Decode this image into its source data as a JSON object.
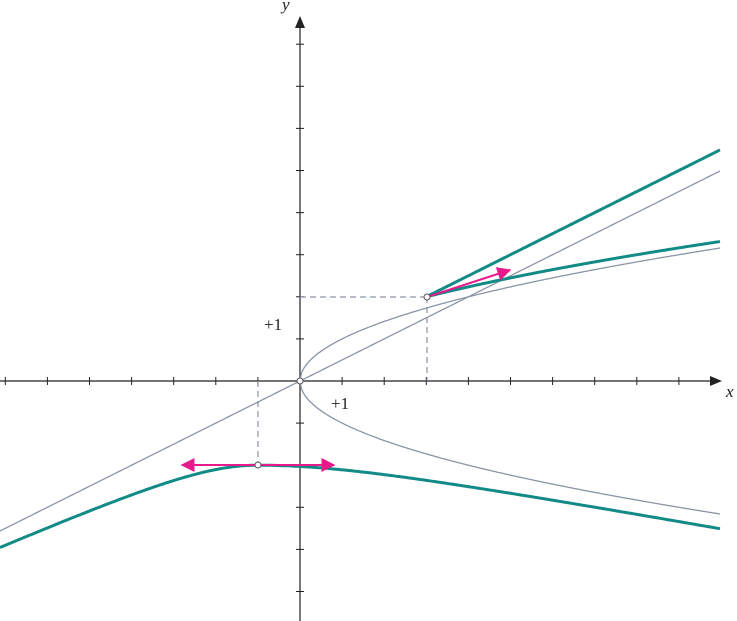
{
  "axis_labels": {
    "x": "x",
    "y": "y"
  },
  "unit_labels": {
    "x": "+1",
    "y": "+1"
  }
}
